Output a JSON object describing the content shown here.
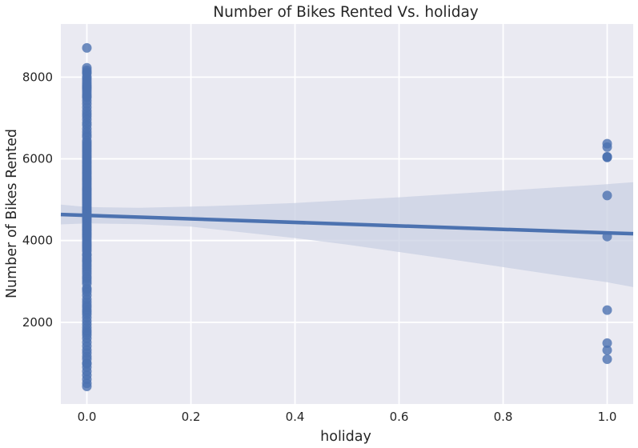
{
  "chart_data": {
    "type": "scatter",
    "title": "Number of Bikes Rented Vs. holiday",
    "xlabel": "holiday",
    "ylabel": "Number of Bikes Rented",
    "xlim": [
      -0.05,
      1.05
    ],
    "ylim": [
      0,
      9300
    ],
    "xticks": [
      0.0,
      0.2,
      0.4,
      0.6,
      0.8,
      1.0
    ],
    "xtick_labels": [
      "0.0",
      "0.2",
      "0.4",
      "0.6",
      "0.8",
      "1.0"
    ],
    "yticks": [
      2000,
      4000,
      6000,
      8000
    ],
    "ytick_labels": [
      "2000",
      "4000",
      "6000",
      "8000"
    ],
    "grid": true,
    "style": "seaborn-darkgrid",
    "background_color": "#EAEAF2",
    "grid_color": "#FFFFFF",
    "point_color": "#4C72B0",
    "line_color": "#4C72B0",
    "ci_color": "#C9D0E3",
    "series": [
      {
        "x": 0,
        "values": [
          431,
          506,
          605,
          705,
          800,
          900,
          985,
          1000,
          1096,
          1162,
          1248,
          1321,
          1416,
          1510,
          1605,
          1685,
          1746,
          1800,
          1872,
          1951,
          2028,
          2114,
          2192,
          2252,
          2302,
          2368,
          2424,
          2493,
          2566,
          2660,
          2743,
          2802,
          2832,
          2947,
          3005,
          3068,
          3117,
          3190,
          3249,
          3310,
          3368,
          3422,
          3485,
          3520,
          3574,
          3644,
          3659,
          3740,
          3784,
          3830,
          3873,
          3910,
          3958,
          4010,
          4066,
          4109,
          4150,
          4191,
          4240,
          4274,
          4318,
          4359,
          4401,
          4459,
          4507,
          4548,
          4588,
          4627,
          4672,
          4717,
          4758,
          4803,
          4844,
          4887,
          4932,
          4978,
          5020,
          5062,
          5107,
          5146,
          5191,
          5235,
          5267,
          5312,
          5362,
          5409,
          5459,
          5501,
          5538,
          5582,
          5629,
          5668,
          5711,
          5755,
          5803,
          5847,
          5895,
          5936,
          5986,
          6030,
          6072,
          6118,
          6169,
          6211,
          6258,
          6304,
          6351,
          6398,
          6445,
          6536,
          6591,
          6660,
          6735,
          6824,
          6883,
          6966,
          7040,
          7105,
          7175,
          7261,
          7347,
          7424,
          7499,
          7534,
          7580,
          7639,
          7691,
          7733,
          7767,
          7804,
          7852,
          7907,
          7965,
          8009,
          8090,
          8120,
          8167,
          8227,
          8714
        ]
      },
      {
        "x": 1,
        "values": [
          1096,
          1317,
          1490,
          2298,
          4098,
          5102,
          6034,
          6043,
          6053,
          6287,
          6370
        ]
      }
    ],
    "regression": {
      "x": [
        -0.05,
        1.05
      ],
      "y": [
        4637,
        4167
      ]
    },
    "confidence_band": {
      "x": [
        -0.05,
        0.0,
        0.1,
        0.2,
        0.3,
        0.4,
        0.5,
        0.6,
        0.7,
        0.8,
        0.9,
        1.0,
        1.05
      ],
      "upper": [
        4880,
        4820,
        4800,
        4830,
        4870,
        4920,
        4990,
        5060,
        5140,
        5220,
        5300,
        5380,
        5430
      ],
      "lower": [
        4395,
        4420,
        4400,
        4340,
        4200,
        4060,
        3900,
        3720,
        3540,
        3350,
        3160,
        2980,
        2860
      ]
    }
  }
}
